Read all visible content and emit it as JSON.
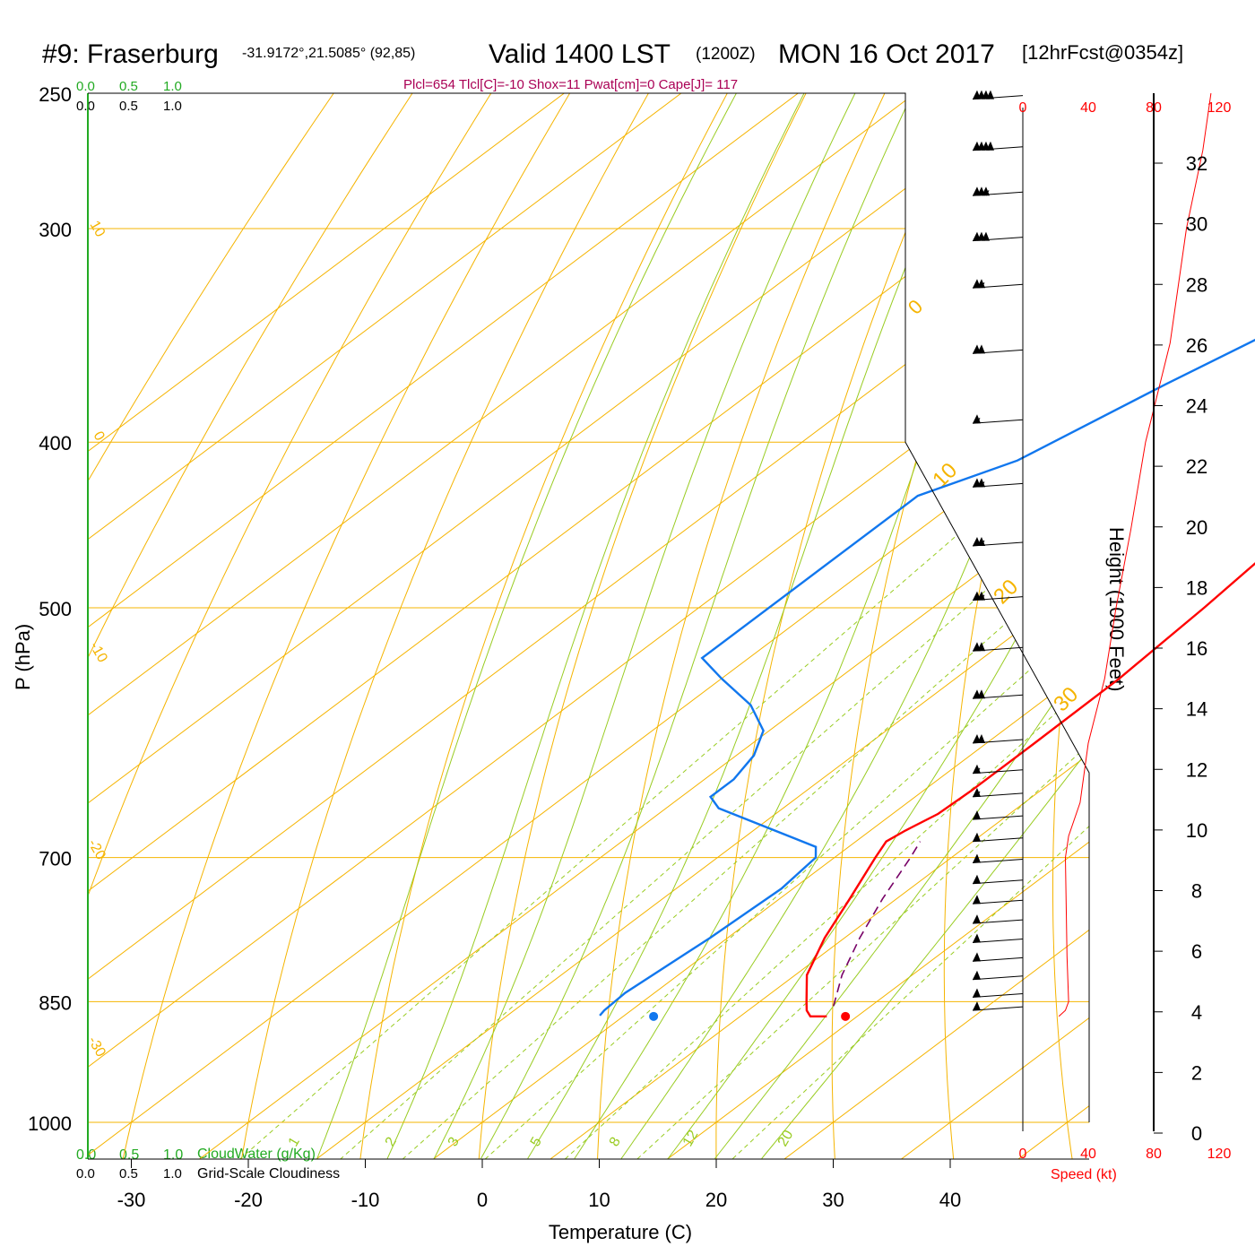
{
  "header": {
    "station": "#9: Fraserburg",
    "coords": "-31.9172°,21.5085° (92,85)",
    "valid": "Valid 1400 LST",
    "zulu": "(1200Z)",
    "date": "MON 16 Oct 2017",
    "forecast": "[12hrFcst@0354z]",
    "indices": "Plcl=654 Tlcl[C]=-10 Shox=11 Pwat[cm]=0 Cape[J]= 117"
  },
  "colors": {
    "isobar": "#f5b400",
    "dry_adiabat": "#f5b400",
    "moist_adiabat": "#99cc22",
    "mixing_ratio": "#99cc22",
    "temperature": "#ff0000",
    "dewpoint": "#1177ee",
    "parcel": "#770066",
    "indices": "#aa0055",
    "cloudwater": "#22aa22",
    "speed": "#ff0000"
  },
  "cloud": {
    "top_ticks": [
      "0.0",
      "0.5",
      "1.0"
    ],
    "bottom_ticks": [
      "0.0",
      "0.5",
      "1.0"
    ],
    "cloudwater_label": "CloudWater (g/Kg)",
    "cloudiness_label": "Grid-Scale Cloudiness"
  },
  "speed_axis": {
    "ticks": [
      "0",
      "40",
      "80",
      "120"
    ],
    "label": "Speed (kt)"
  },
  "height_axis": {
    "label": "Height (1000 Feet)",
    "ticks": [
      "0",
      "2",
      "4",
      "6",
      "8",
      "10",
      "12",
      "14",
      "16",
      "18",
      "20",
      "22",
      "24",
      "26",
      "28",
      "30",
      "32"
    ]
  },
  "chart_data": {
    "type": "line",
    "title": "#9: Fraserburg  Valid 1400 LST (1200Z) MON 16 Oct 2017",
    "xlabel": "Temperature (C)",
    "ylabel": "P (hPa)",
    "x_ticks": [
      "-30",
      "-20",
      "-10",
      "0",
      "10",
      "20",
      "30",
      "40"
    ],
    "y_ticks": [
      "250",
      "300",
      "400",
      "500",
      "700",
      "850",
      "1000"
    ],
    "xlim": [
      -30,
      40
    ],
    "y_scale": "log-pressure",
    "dry_adiabat_labels": [
      "10",
      "0",
      "-10",
      "-20",
      "-30"
    ],
    "dry_adiabat_right_labels": [
      "0",
      "10",
      "20",
      "30"
    ],
    "mixing_ratio_labels": [
      "1",
      "2",
      "3",
      "5",
      "8",
      "12",
      "20"
    ],
    "series": [
      {
        "name": "Temperature",
        "points_p_t": [
          [
            867,
            17.4
          ],
          [
            867,
            16.0
          ],
          [
            860,
            15.0
          ],
          [
            850,
            14.0
          ],
          [
            820,
            11.0
          ],
          [
            780,
            8.3
          ],
          [
            740,
            6.0
          ],
          [
            700,
            3.5
          ],
          [
            685,
            2.6
          ],
          [
            675,
            3.0
          ],
          [
            660,
            3.9
          ],
          [
            640,
            4.1
          ],
          [
            600,
            4.1
          ],
          [
            550,
            4.0
          ],
          [
            500,
            3.2
          ],
          [
            450,
            2.0
          ],
          [
            400,
            0.0
          ],
          [
            350,
            -2.5
          ],
          [
            300,
            -4.5
          ],
          [
            275,
            -5.0
          ],
          [
            250,
            -5.6
          ]
        ]
      },
      {
        "name": "Dewpoint",
        "points_p_t": [
          [
            866,
            -2.1
          ],
          [
            860,
            -2.3
          ],
          [
            840,
            -2.5
          ],
          [
            780,
            -1.5
          ],
          [
            730,
            -1.0
          ],
          [
            700,
            -1.6
          ],
          [
            690,
            -2.8
          ],
          [
            655,
            -15.5
          ],
          [
            645,
            -17.5
          ],
          [
            630,
            -17.5
          ],
          [
            610,
            -18.5
          ],
          [
            590,
            -20.5
          ],
          [
            570,
            -24.5
          ],
          [
            550,
            -30.0
          ],
          [
            535,
            -34.0
          ],
          [
            430,
            -34.0
          ],
          [
            410,
            -29.5
          ],
          [
            370,
            -25.5
          ],
          [
            330,
            -20.5
          ],
          [
            310,
            -18.0
          ],
          [
            290,
            -16.3
          ],
          [
            270,
            -15.1
          ],
          [
            250,
            -15.1
          ]
        ]
      },
      {
        "name": "Parcel",
        "points_p_t": [
          [
            855,
            16.8
          ],
          [
            820,
            14.0
          ],
          [
            780,
            11.3
          ],
          [
            740,
            8.8
          ],
          [
            700,
            6.5
          ],
          [
            685,
            5.5
          ]
        ]
      }
    ],
    "surface_temperature": {
      "p": 867,
      "t": 19.0
    },
    "surface_dewpoint": {
      "p": 867,
      "t": 2.6
    },
    "wind_barbs_kt": [
      {
        "p": 252,
        "speed": 40,
        "dir": 280
      },
      {
        "p": 270,
        "speed": 40,
        "dir": 280
      },
      {
        "p": 287,
        "speed": 35,
        "dir": 280
      },
      {
        "p": 305,
        "speed": 30,
        "dir": 280
      },
      {
        "p": 325,
        "speed": 25,
        "dir": 280
      },
      {
        "p": 355,
        "speed": 20,
        "dir": 280
      },
      {
        "p": 390,
        "speed": 15,
        "dir": 280
      },
      {
        "p": 425,
        "speed": 25,
        "dir": 275
      },
      {
        "p": 460,
        "speed": 25,
        "dir": 270
      },
      {
        "p": 495,
        "speed": 25,
        "dir": 270
      },
      {
        "p": 530,
        "speed": 20,
        "dir": 270
      },
      {
        "p": 565,
        "speed": 20,
        "dir": 270
      },
      {
        "p": 600,
        "speed": 20,
        "dir": 270
      },
      {
        "p": 625,
        "speed": 15,
        "dir": 270
      },
      {
        "p": 645,
        "speed": 15,
        "dir": 270
      },
      {
        "p": 665,
        "speed": 10,
        "dir": 270
      },
      {
        "p": 685,
        "speed": 10,
        "dir": 270
      },
      {
        "p": 705,
        "speed": 10,
        "dir": 270
      },
      {
        "p": 725,
        "speed": 10,
        "dir": 270
      },
      {
        "p": 745,
        "speed": 10,
        "dir": 270
      },
      {
        "p": 765,
        "speed": 10,
        "dir": 270
      },
      {
        "p": 785,
        "speed": 10,
        "dir": 270
      },
      {
        "p": 805,
        "speed": 10,
        "dir": 270
      },
      {
        "p": 825,
        "speed": 10,
        "dir": 270
      },
      {
        "p": 845,
        "speed": 10,
        "dir": 270
      },
      {
        "p": 860,
        "speed": 10,
        "dir": 270
      }
    ],
    "speed_profile_kt": [
      [
        867,
        22
      ],
      [
        860,
        26
      ],
      [
        850,
        28
      ],
      [
        800,
        27
      ],
      [
        700,
        26
      ],
      [
        680,
        28
      ],
      [
        650,
        35
      ],
      [
        600,
        40
      ],
      [
        550,
        50
      ],
      [
        500,
        57
      ],
      [
        450,
        66
      ],
      [
        400,
        75
      ],
      [
        350,
        90
      ],
      [
        300,
        100
      ],
      [
        270,
        110
      ],
      [
        250,
        115
      ]
    ]
  }
}
